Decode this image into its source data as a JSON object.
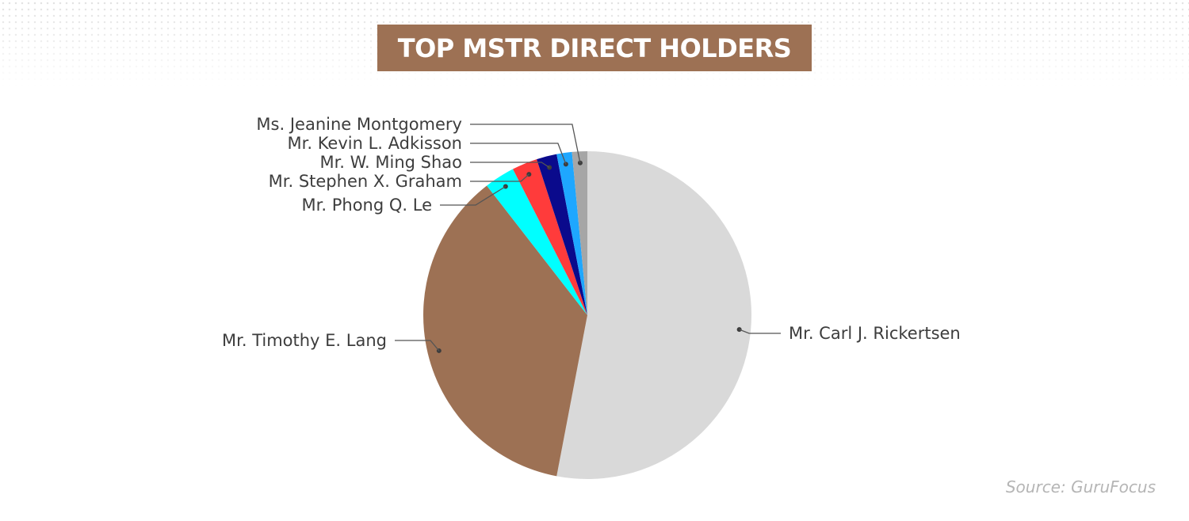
{
  "title": "TOP MSTR DIRECT HOLDERS",
  "source": "Source: GuruFocus",
  "chart_data": {
    "type": "pie",
    "start_angle": "12 o'clock",
    "direction": "clockwise",
    "slices": [
      {
        "label": "Mr. Carl J. Rickertsen",
        "value": 53.0,
        "color": "#d9d9d9",
        "label_side": "right"
      },
      {
        "label": "Mr. Timothy E. Lang",
        "value": 36.5,
        "color": "#9d7154",
        "label_side": "left"
      },
      {
        "label": "Mr. Phong Q. Le",
        "value": 3.0,
        "color": "#00ffff",
        "label_side": "left"
      },
      {
        "label": "Mr. Stephen X. Graham",
        "value": 2.5,
        "color": "#ff3b3b",
        "label_side": "left"
      },
      {
        "label": "Mr. W. Ming Shao",
        "value": 2.0,
        "color": "#0a0a8c",
        "label_side": "left"
      },
      {
        "label": "Mr. Kevin L. Adkisson",
        "value": 1.5,
        "color": "#1ea7ff",
        "label_side": "left"
      },
      {
        "label": "Ms. Jeanine Montgomery",
        "value": 1.5,
        "color": "#a6a6a6",
        "label_side": "left"
      }
    ]
  }
}
